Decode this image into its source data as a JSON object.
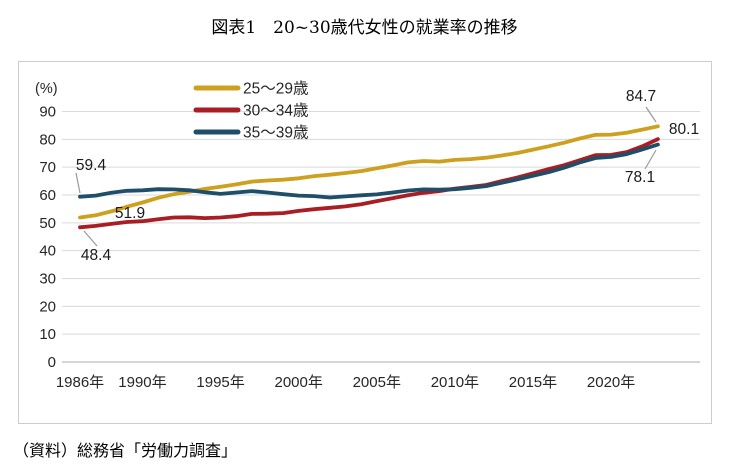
{
  "title": "図表1　20~30歳代女性の就業率の推移",
  "source": "（資料）総務省「労働力調査」",
  "chart_data": {
    "type": "line",
    "unit_label": "(%)",
    "ylim": [
      0,
      90
    ],
    "y_ticks": [
      0,
      10,
      20,
      30,
      40,
      50,
      60,
      70,
      80,
      90
    ],
    "x_start_year": 1986,
    "x_end_year": 2023,
    "x_ticks": [
      {
        "year": 1986,
        "label": "1986年"
      },
      {
        "year": 1990,
        "label": "1990年"
      },
      {
        "year": 1995,
        "label": "1995年"
      },
      {
        "year": 2000,
        "label": "2000年"
      },
      {
        "year": 2005,
        "label": "2005年"
      },
      {
        "year": 2010,
        "label": "2010年"
      },
      {
        "year": 2015,
        "label": "2015年"
      },
      {
        "year": 2020,
        "label": "2020年"
      }
    ],
    "grid": true,
    "legend_position": "top-center",
    "series": [
      {
        "name": "25～29歳",
        "color": "#CDA01F",
        "values": [
          51.9,
          52.7,
          54.1,
          55.8,
          57.3,
          59.0,
          60.3,
          61.2,
          62.2,
          63.0,
          63.8,
          64.8,
          65.2,
          65.5,
          66.0,
          66.8,
          67.3,
          67.9,
          68.6,
          69.6,
          70.6,
          71.7,
          72.2,
          72.0,
          72.6,
          72.9,
          73.4,
          74.2,
          75.1,
          76.3,
          77.5,
          78.8,
          80.3,
          81.6,
          81.7,
          82.4,
          83.5,
          84.7
        ]
      },
      {
        "name": "30～34歳",
        "color": "#A81E24",
        "values": [
          48.4,
          48.9,
          49.6,
          50.3,
          50.6,
          51.3,
          51.9,
          52.0,
          51.7,
          51.9,
          52.4,
          53.2,
          53.3,
          53.5,
          54.3,
          54.9,
          55.4,
          55.9,
          56.7,
          57.8,
          58.8,
          59.9,
          60.8,
          61.4,
          62.3,
          62.9,
          63.6,
          65.0,
          66.3,
          67.8,
          69.3,
          70.7,
          72.5,
          74.3,
          74.4,
          75.4,
          77.5,
          80.1
        ]
      },
      {
        "name": "35～39歳",
        "color": "#1F4E6B",
        "values": [
          59.4,
          59.8,
          60.8,
          61.5,
          61.7,
          62.1,
          62.0,
          61.7,
          61.0,
          60.4,
          60.9,
          61.4,
          60.9,
          60.3,
          59.8,
          59.6,
          59.1,
          59.5,
          59.9,
          60.2,
          60.9,
          61.6,
          62.0,
          61.9,
          62.1,
          62.6,
          63.2,
          64.4,
          65.6,
          66.9,
          68.2,
          69.8,
          71.7,
          73.3,
          73.7,
          74.7,
          76.4,
          78.1
        ]
      }
    ],
    "annotations": [
      {
        "label": "59.4",
        "series": "35～39歳",
        "year": 1986,
        "value": 59.4
      },
      {
        "label": "51.9",
        "series": "25～29歳",
        "year": 1986,
        "value": 51.9
      },
      {
        "label": "48.4",
        "series": "30～34歳",
        "year": 1986,
        "value": 48.4
      },
      {
        "label": "84.7",
        "series": "25～29歳",
        "year": 2023,
        "value": 84.7
      },
      {
        "label": "80.1",
        "series": "30～34歳",
        "year": 2023,
        "value": 80.1
      },
      {
        "label": "78.1",
        "series": "35～39歳",
        "year": 2023,
        "value": 78.1
      }
    ],
    "colors": {
      "grid": "#DADADA",
      "baseline": "#ABABAB",
      "frame": "#CCCCCC",
      "leader": "#999999",
      "axis_text": "#262626"
    }
  }
}
